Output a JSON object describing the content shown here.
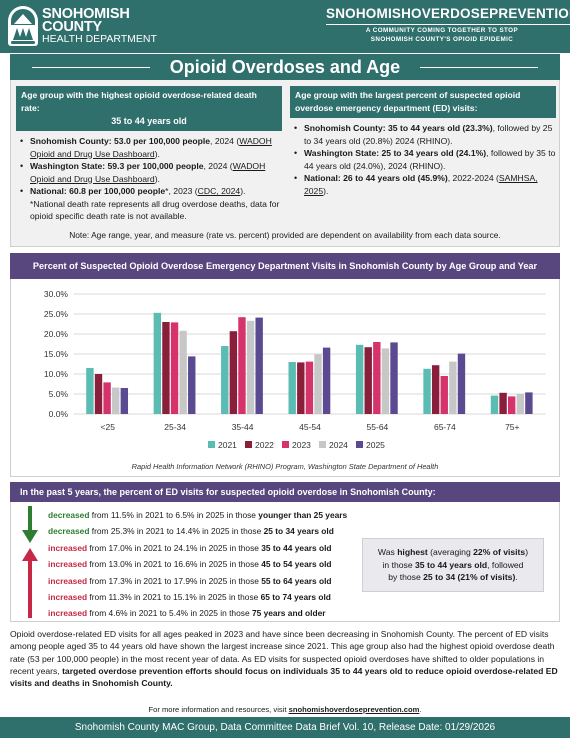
{
  "header": {
    "logo_line1": "SNOHOMISH",
    "logo_line2": "COUNTY",
    "logo_line3": "HEALTH DEPARTMENT",
    "brand_title": "SNOHOMISHOVERDOSEPREVENTION",
    "brand_tagline_1": "A COMMUNITY COMING TOGETHER TO STOP",
    "brand_tagline_2": "SNOHOMISH COUNTY'S OPIOID EPIDEMIC"
  },
  "page_title": "Opioid Overdoses and Age",
  "left_panel": {
    "heading": "Age group with the highest opioid overdose-related death rate:",
    "heading_value": "35 to 44 years old",
    "items": [
      {
        "bold": "Snohomish County: 53.0 per 100,000 people",
        "text": ", 2024 (",
        "link": "WADOH Opioid and Drug Use Dashboard",
        "after": ")."
      },
      {
        "bold": "Washington State: 59.3 per 100,000 people",
        "text": ", 2024 (",
        "link": "WADOH Opioid and Drug Use Dashboard",
        "after": ")."
      },
      {
        "bold": "National: 60.8 per 100,000 people",
        "text": "*, 2023 (",
        "link": "CDC, 2024",
        "after": ")."
      }
    ],
    "footnote": "*National death rate represents all drug overdose deaths, data for opioid specific death rate is not available."
  },
  "right_panel": {
    "heading": "Age group with the largest percent of suspected opioid overdose emergency department (ED) visits:",
    "items": [
      {
        "bold": "Snohomish County: 35 to 44 years old (23.3%)",
        "text": ", followed by 25 to 34 years old (20.8%) 2024 (RHINO).",
        "link": "",
        "after": ""
      },
      {
        "bold": "Washington State: 25 to 34 years old (24.1%)",
        "text": ", followed by 35 to 44 years old (24.0%), 2024 (RHINO).",
        "link": "",
        "after": ""
      },
      {
        "bold": "National: 26 to 44 years old (45.9%)",
        "text": ", 2022-2024 (",
        "link": "SAMHSA, 2025",
        "after": ")."
      }
    ]
  },
  "summary_note": "Note: Age range, year, and measure (rate vs. percent) provided are dependent on availability from each data source.",
  "chart_data": {
    "type": "bar",
    "title": "Percent of Suspected Opioid Overdose Emergency Department Visits in Snohomish County by Age Group and Year",
    "categories": [
      "<25",
      "25-34",
      "35-44",
      "45-54",
      "55-64",
      "65-74",
      "75+"
    ],
    "series": [
      {
        "name": "2021",
        "color": "#5bbcb4",
        "values": [
          11.5,
          25.3,
          17.0,
          13.0,
          17.3,
          11.3,
          4.6
        ]
      },
      {
        "name": "2022",
        "color": "#8a1f3c",
        "values": [
          10.0,
          23.0,
          20.7,
          12.9,
          16.7,
          12.2,
          5.3
        ]
      },
      {
        "name": "2023",
        "color": "#d6336c",
        "values": [
          7.9,
          22.9,
          24.2,
          13.1,
          18.0,
          9.5,
          4.4
        ]
      },
      {
        "name": "2024",
        "color": "#c7c7c7",
        "values": [
          6.6,
          20.8,
          23.3,
          14.9,
          16.4,
          13.1,
          5.0
        ]
      },
      {
        "name": "2025",
        "color": "#5b4a91",
        "values": [
          6.5,
          14.4,
          24.1,
          16.6,
          17.9,
          15.1,
          5.4
        ]
      }
    ],
    "y_ticks": [
      "0.0%",
      "5.0%",
      "10.0%",
      "15.0%",
      "20.0%",
      "25.0%",
      "30.0%"
    ],
    "ylim": [
      0,
      30
    ],
    "grid": true,
    "legend": "bottom",
    "source": "Rapid Health Information Network (RHINO) Program, Washington State Department of Health"
  },
  "trends": {
    "heading": "In the past 5 years, the percent of ED visits for suspected opioid overdose in Snohomish County:",
    "rows": [
      {
        "dir": "decreased",
        "mid": " from 11.5% in 2021 to 6.5% in 2025 in those ",
        "group": "younger than 25 years"
      },
      {
        "dir": "decreased",
        "mid": " from 25.3% in 2021 to 14.4% in 2025 in those ",
        "group": "25 to 34 years old"
      },
      {
        "dir": "increased",
        "mid": " from 17.0% in 2021 to 24.1% in 2025 in those ",
        "group": "35 to 44 years old"
      },
      {
        "dir": "increased",
        "mid": " from 13.0% in 2021 to 16.6% in 2025 in those ",
        "group": "45 to 54 years old"
      },
      {
        "dir": "increased",
        "mid": " from 17.3% in 2021 to 17.9% in 2025 in those ",
        "group": "55 to 64 years old"
      },
      {
        "dir": "increased",
        "mid": " from 11.3% in 2021 to 15.1% in 2025 in those ",
        "group": "65 to 74 years old"
      },
      {
        "dir": "increased",
        "mid": " from 4.6% in 2021 to 5.4% in 2025 in those ",
        "group": "75 years and older"
      }
    ],
    "highlight": {
      "p1": "Was ",
      "b1": "highest",
      "p2": " (averaging ",
      "b2": "22% of visits",
      "p3": ")",
      "p4": "in those ",
      "b3": "35 to 44 years old",
      "p5": ", followed",
      "p6": "by those ",
      "b4": "25 to 34 (21% of visits)",
      "p7": "."
    }
  },
  "conclusion": {
    "text": "Opioid overdose-related ED visits for all ages peaked in 2023 and have since been decreasing in Snohomish County. The percent of ED visits among people aged 35 to 44 years old have shown the largest increase since 2021. This age group also had the highest opioid overdose death rate (53 per 100,000 people) in the most recent year of data. As ED visits for suspected opioid overdoses have shifted to older populations in recent years, ",
    "bold": "targeted overdose prevention efforts should focus on individuals 35 to 44 years old to reduce opioid overdose-related ED visits and deaths in Snohomish County."
  },
  "more_info": {
    "text": "For more information and resources, visit ",
    "link": "snohomishoverdoseprevention.com",
    "after": "."
  },
  "footer": "Snohomish County MAC Group, Data Committee Data Brief Vol. 10, Release Date: 01/29/2026"
}
